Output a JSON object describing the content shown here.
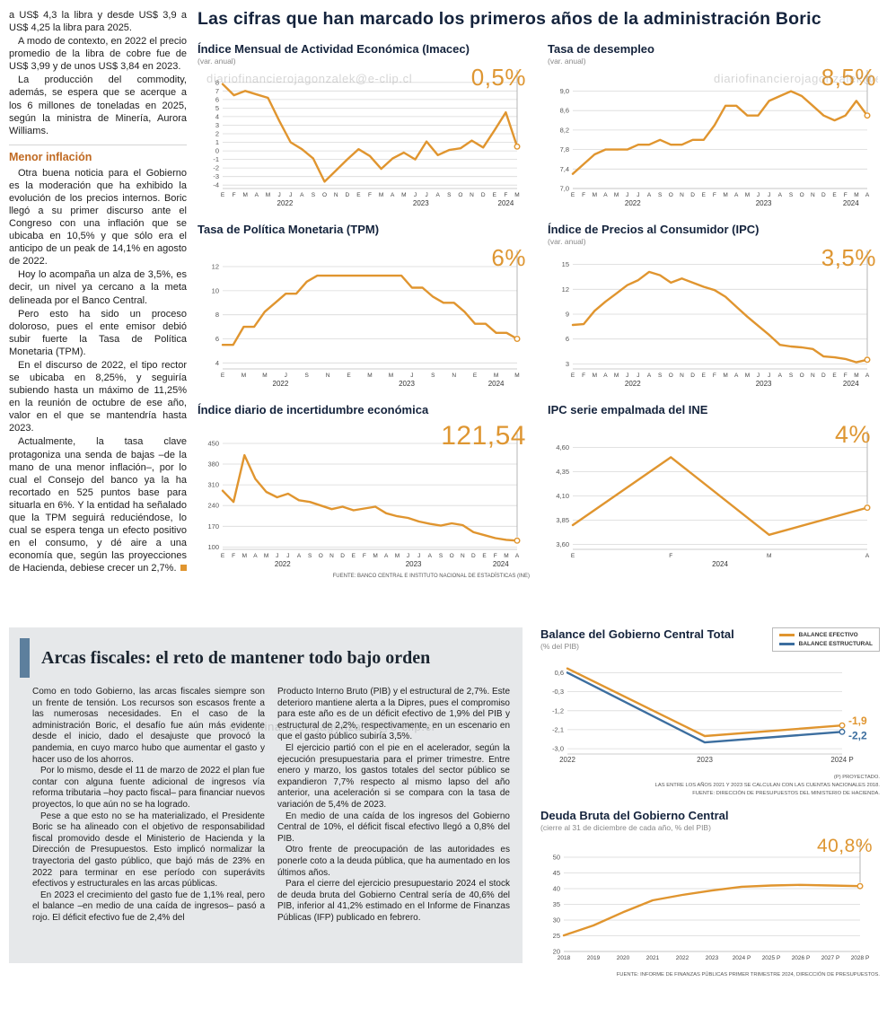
{
  "page": {
    "watermark": "diariofinancierojagonzalek@e-clip.cl"
  },
  "left_column": {
    "subheading": "Menor inflación",
    "paragraphs": [
      "a US$ 4,3 la libra y desde US$ 3,9 a US$ 4,25 la libra para 2025.",
      "A modo de contexto, en 2022 el precio promedio de la libra de cobre fue de US$ 3,99 y de unos US$ 3,84 en 2023.",
      "La producción del commodity, además, se espera que se acerque a los 6 millones de toneladas en 2025, según la ministra de Minería, Aurora Williams.",
      "Otra buena noticia para el Gobierno es la moderación que ha exhibido la evolución de los precios internos. Boric llegó a su primer discurso ante el Congreso con una inflación que se ubicaba en 10,5% y que sólo era el anticipo de un peak de 14,1% en agosto de 2022.",
      "Hoy lo acompaña un alza de 3,5%, es decir, un nivel ya cercano a la meta delineada por el Banco Central.",
      "Pero esto ha sido un proceso doloroso, pues el ente emisor debió subir fuerte la Tasa de Política Monetaria (TPM).",
      "En el discurso de 2022, el tipo rector se ubicaba en 8,25%, y seguiría subiendo hasta un máximo de 11,25% en la reunión de octubre de ese año, valor en el que se mantendría hasta 2023.",
      "Actualmente, la tasa clave protagoniza una senda de bajas –de la mano de una menor inflación–, por lo cual el Consejo del banco ya la ha recortado en 525 puntos base para situarla en 6%. Y la entidad ha señalado que la TPM seguirá reduciéndose, lo cual se espera tenga un efecto positivo en el consumo, y dé aire a una economía que, según las proyecciones de Hacienda, debiese crecer un 2,7%."
    ]
  },
  "main": {
    "title": "Las cifras que han marcado los primeros años de la administración Boric",
    "source": "FUENTE: BANCO CENTRAL E INSTITUTO NACIONAL DE ESTADÍSTICAS (INE)"
  },
  "fiscal": {
    "title": "Arcas fiscales: el reto de mantener todo bajo orden",
    "col1": [
      "Como en todo Gobierno, las arcas fiscales siempre son un frente de tensión. Los recursos son escasos frente a las numerosas necesidades. En el caso de la administración Boric, el desafío fue aún más evidente desde el inicio, dado el desajuste que provocó la pandemia, en cuyo marco hubo que aumentar el gasto y hacer uso de los ahorros.",
      "Por lo mismo, desde el 11 de marzo de 2022 el plan fue contar con alguna fuente adicional de ingresos vía reforma tributaria –hoy pacto fiscal– para financiar nuevos proyectos, lo que aún no se ha logrado.",
      "Pese a que esto no se ha materializado, el Presidente Boric se ha alineado con el objetivo de responsabilidad fiscal promovido desde el Ministerio de Hacienda y la Dirección de Presupuestos. Esto implicó normalizar la trayectoria del gasto público, que bajó más de 23% en 2022 para terminar en ese período con superávits efectivos y estructurales en las arcas públicas.",
      "En 2023 el crecimiento del gasto fue de 1,1% real, pero el balance –en medio de una caída de ingresos– pasó a rojo. El déficit efectivo fue de 2,4% del"
    ],
    "col2": [
      "Producto Interno Bruto (PIB) y el estructural de 2,7%. Este deterioro mantiene alerta a la Dipres, pues el compromiso para este año es de un déficit efectivo de 1,9% del PIB y estructural de 2,2%, respectivamente, en un escenario en que el gasto público subiría 3,5%.",
      "El ejercicio partió con el pie en el acelerador, según la ejecución presupuestaria para el primer trimestre. Entre enero y marzo, los gastos totales del sector público se expandieron 7,7% respecto al mismo lapso del año anterior, una aceleración si se compara con la tasa de variación de 5,4% de 2023.",
      "En medio de una caída de los ingresos del Gobierno Central de 10%, el déficit fiscal efectivo llegó a 0,8% del PIB.",
      "Otro frente de preocupación de las autoridades es ponerle coto a la deuda pública, que ha aumentado en los últimos años.",
      "Para el cierre del ejercicio presupuestario 2024 el stock de deuda bruta del Gobierno Central sería de 40,6% del PIB, inferior al 41,2% estimado en el Informe de Finanzas Públicas (IFP) publicado en febrero."
    ]
  },
  "fiscal_charts": {
    "note1": "(P) PROYECTADO.",
    "note2": "LAS ENTRE LOS AÑOS 2021 Y 2023 SE CALCULAN CON LAS CUENTAS NACIONALES 2018.",
    "note3": "FUENTE: DIRECCIÓN DE PRESUPUESTOS DEL MINISTERIO DE HACIENDA.",
    "deuda_source": "FUENTE: INFORME DE FINANZAS PÚBLICAS PRIMER TRIMESTRE 2024, DIRECCIÓN DE PRESUPUESTOS."
  },
  "chart_data": [
    {
      "type": "line",
      "title": "Índice Mensual de Actividad Económica (Imacec)",
      "subtitle": "(var. anual)",
      "highlight": "0,5%",
      "ylim": [
        -4.4,
        8.4
      ],
      "ytick_values": [
        8,
        7,
        6,
        5,
        4,
        3,
        2,
        1,
        0,
        -1,
        -2,
        -3,
        -4
      ],
      "ytick_labels": [
        "8",
        "7",
        "6",
        "5",
        "4",
        "3",
        "2",
        "1",
        "0",
        "-1",
        "-2",
        "-3",
        "-4"
      ],
      "x_labels": [
        "E",
        "F",
        "M",
        "A",
        "M",
        "J",
        "J",
        "A",
        "S",
        "O",
        "N",
        "D",
        "E",
        "F",
        "M",
        "A",
        "M",
        "J",
        "J",
        "A",
        "S",
        "O",
        "N",
        "D",
        "E",
        "F",
        "M"
      ],
      "years": [
        {
          "label": "2022",
          "from": 0,
          "to": 11
        },
        {
          "label": "2023",
          "from": 12,
          "to": 23
        },
        {
          "label": "2024",
          "from": 24,
          "to": 26
        }
      ],
      "series": [
        {
          "name": "Imacec",
          "color": "#e0952f",
          "values": [
            7.8,
            6.5,
            7.0,
            6.6,
            6.2,
            3.5,
            1.0,
            0.2,
            -0.9,
            -3.6,
            -2.3,
            -1.0,
            0.2,
            -0.6,
            -2.1,
            -0.9,
            -0.2,
            -1.0,
            1.1,
            -0.5,
            0.1,
            0.3,
            1.2,
            0.4,
            2.4,
            4.5,
            0.5
          ]
        }
      ]
    },
    {
      "type": "line",
      "title": "Tasa de desempleo",
      "subtitle": "(var. anual)",
      "highlight": "8,5%",
      "ylim": [
        7.0,
        9.25
      ],
      "ytick_values": [
        9.0,
        8.6,
        8.2,
        7.8,
        7.4,
        7.0
      ],
      "ytick_labels": [
        "9,0",
        "8,6",
        "8,2",
        "7,8",
        "7,4",
        "7,0"
      ],
      "x_labels": [
        "E",
        "F",
        "M",
        "A",
        "M",
        "J",
        "J",
        "A",
        "S",
        "O",
        "N",
        "D",
        "E",
        "F",
        "M",
        "A",
        "M",
        "J",
        "J",
        "A",
        "S",
        "O",
        "N",
        "D",
        "E",
        "F",
        "M",
        "A"
      ],
      "years": [
        {
          "label": "2022",
          "from": 0,
          "to": 11
        },
        {
          "label": "2023",
          "from": 12,
          "to": 23
        },
        {
          "label": "2024",
          "from": 24,
          "to": 27
        }
      ],
      "series": [
        {
          "name": "Desempleo",
          "color": "#e0952f",
          "values": [
            7.3,
            7.5,
            7.7,
            7.8,
            7.8,
            7.8,
            7.9,
            7.9,
            8.0,
            7.9,
            7.9,
            8.0,
            8.0,
            8.3,
            8.7,
            8.7,
            8.5,
            8.5,
            8.8,
            8.9,
            9.0,
            8.9,
            8.7,
            8.5,
            8.4,
            8.5,
            8.8,
            8.5
          ]
        }
      ]
    },
    {
      "type": "line",
      "title": "Tasa de Política Monetaria (TPM)",
      "subtitle": "",
      "highlight": "6%",
      "ylim": [
        3.5,
        12.6
      ],
      "ytick_values": [
        12,
        10,
        8,
        6,
        4
      ],
      "ytick_labels": [
        "12",
        "10",
        "8",
        "6",
        "4"
      ],
      "x_labels": [
        "E",
        "",
        "M",
        "",
        "M",
        "",
        "J",
        "",
        "S",
        "",
        "N",
        "",
        "E",
        "",
        "M",
        "",
        "M",
        "",
        "J",
        "",
        "S",
        "",
        "N",
        "",
        "E",
        "",
        "M",
        "",
        "M"
      ],
      "years": [
        {
          "label": "2022",
          "from": 0,
          "to": 11
        },
        {
          "label": "2023",
          "from": 12,
          "to": 23
        },
        {
          "label": "2024",
          "from": 24,
          "to": 28
        }
      ],
      "series": [
        {
          "name": "TPM",
          "color": "#e0952f",
          "values": [
            5.5,
            5.5,
            7.0,
            7.0,
            8.25,
            9.0,
            9.75,
            9.75,
            10.75,
            11.25,
            11.25,
            11.25,
            11.25,
            11.25,
            11.25,
            11.25,
            11.25,
            11.25,
            10.25,
            10.25,
            9.5,
            9.0,
            9.0,
            8.25,
            7.25,
            7.25,
            6.5,
            6.5,
            6.0
          ]
        }
      ]
    },
    {
      "type": "line",
      "title": "Índice de Precios al Consumidor (IPC)",
      "subtitle": "(var. anual)",
      "highlight": "3,5%",
      "ylim": [
        2.4,
        15.6
      ],
      "ytick_values": [
        15,
        12,
        9,
        6,
        3
      ],
      "ytick_labels": [
        "15",
        "12",
        "9",
        "6",
        "3"
      ],
      "x_labels": [
        "E",
        "F",
        "M",
        "A",
        "M",
        "J",
        "J",
        "A",
        "S",
        "O",
        "N",
        "D",
        "E",
        "F",
        "M",
        "A",
        "M",
        "J",
        "J",
        "A",
        "S",
        "O",
        "N",
        "D",
        "E",
        "F",
        "M",
        "A"
      ],
      "years": [
        {
          "label": "2022",
          "from": 0,
          "to": 11
        },
        {
          "label": "2023",
          "from": 12,
          "to": 23
        },
        {
          "label": "2024",
          "from": 24,
          "to": 27
        }
      ],
      "series": [
        {
          "name": "IPC",
          "color": "#e0952f",
          "values": [
            7.7,
            7.8,
            9.4,
            10.5,
            11.5,
            12.5,
            13.1,
            14.1,
            13.7,
            12.8,
            13.3,
            12.8,
            12.3,
            11.9,
            11.1,
            9.9,
            8.7,
            7.6,
            6.5,
            5.3,
            5.1,
            5.0,
            4.8,
            3.9,
            3.8,
            3.6,
            3.2,
            3.5
          ]
        }
      ]
    },
    {
      "type": "line",
      "title": "Índice diario de incertidumbre económica",
      "subtitle": "",
      "highlight": "121,54",
      "ylim": [
        92,
        462
      ],
      "ytick_values": [
        450,
        380,
        310,
        240,
        170,
        100
      ],
      "ytick_labels": [
        "450",
        "380",
        "310",
        "240",
        "170",
        "100"
      ],
      "x_labels": [
        "E",
        "F",
        "M",
        "A",
        "M",
        "J",
        "J",
        "A",
        "S",
        "O",
        "N",
        "D",
        "E",
        "F",
        "M",
        "A",
        "M",
        "J",
        "J",
        "A",
        "S",
        "O",
        "N",
        "D",
        "E",
        "F",
        "M",
        "A"
      ],
      "years": [
        {
          "label": "2022",
          "from": 0,
          "to": 11
        },
        {
          "label": "2023",
          "from": 12,
          "to": 23
        },
        {
          "label": "2024",
          "from": 24,
          "to": 27
        }
      ],
      "series": [
        {
          "name": "Incertidumbre",
          "color": "#e0952f",
          "values": [
            290,
            252,
            410,
            330,
            286,
            268,
            280,
            258,
            252,
            240,
            228,
            236,
            224,
            230,
            236,
            214,
            204,
            198,
            186,
            178,
            172,
            180,
            174,
            150,
            140,
            130,
            124,
            121.54
          ]
        }
      ]
    },
    {
      "type": "line",
      "title": "IPC serie empalmada del INE",
      "subtitle": "",
      "highlight": "4%",
      "ylim": [
        3.55,
        4.68
      ],
      "ytick_values": [
        4.6,
        4.35,
        4.1,
        3.85,
        3.6
      ],
      "ytick_labels": [
        "4,60",
        "4,35",
        "4,10",
        "3,85",
        "3,60"
      ],
      "x_labels": [
        "E",
        "F",
        "M",
        "A"
      ],
      "years": [
        {
          "label": "2024",
          "from": 0,
          "to": 3
        }
      ],
      "series": [
        {
          "name": "IPC INE",
          "color": "#e0952f",
          "values": [
            3.8,
            4.5,
            3.7,
            3.98
          ]
        }
      ]
    },
    {
      "type": "line",
      "title": "Balance del Gobierno Central Total",
      "subtitle": "(% del PIB)",
      "ylim": [
        -3.25,
        1.0
      ],
      "ytick_values": [
        0.6,
        -0.3,
        -1.2,
        -2.1,
        -3.0
      ],
      "ytick_labels": [
        "0,6",
        "-0,3",
        "-1,2",
        "-2,1",
        "-3,0"
      ],
      "x_labels": [
        "2022",
        "2023",
        "2024 P"
      ],
      "series": [
        {
          "name": "BALANCE EFECTIVO",
          "color": "#e0952f",
          "values": [
            0.8,
            -2.4,
            -1.9
          ],
          "end_label": "-1,9"
        },
        {
          "name": "BALANCE ESTRUCTURAL",
          "color": "#3c6e9f",
          "values": [
            0.6,
            -2.7,
            -2.2
          ],
          "end_label": "-2,2"
        }
      ]
    },
    {
      "type": "line",
      "title": "Deuda Bruta del Gobierno Central",
      "subtitle": "(cierre al 31 de diciembre de cada año, % del PIB)",
      "highlight": "40,8%",
      "ylim": [
        20,
        52
      ],
      "ytick_values": [
        50,
        45,
        40,
        35,
        30,
        25,
        20
      ],
      "ytick_labels": [
        "50",
        "45",
        "40",
        "35",
        "30",
        "25",
        "20"
      ],
      "x_labels": [
        "2018",
        "2019",
        "2020",
        "2021",
        "2022",
        "2023",
        "2024 P",
        "2025 P",
        "2026 P",
        "2027 P",
        "2028 P"
      ],
      "series": [
        {
          "name": "Deuda bruta",
          "color": "#e0952f",
          "values": [
            25.1,
            28.3,
            32.5,
            36.3,
            38.0,
            39.4,
            40.6,
            41.0,
            41.2,
            41.0,
            40.8
          ]
        }
      ]
    }
  ]
}
